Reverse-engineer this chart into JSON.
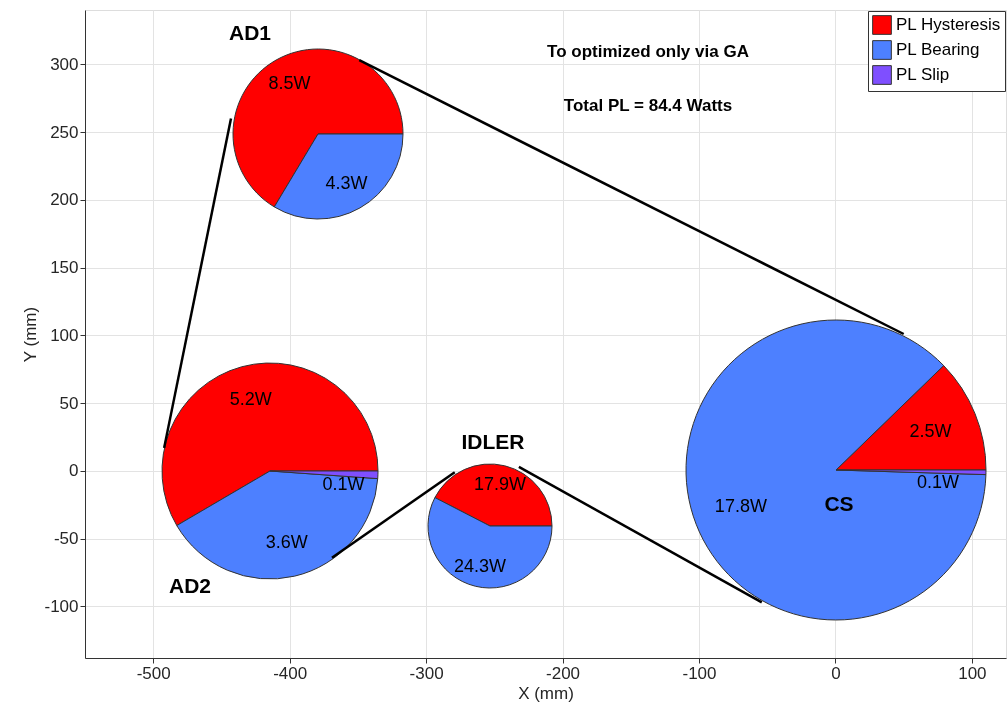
{
  "chart_data": [
    {
      "type": "line",
      "xlabel": "X (mm)",
      "ylabel": "Y (mm)",
      "xlim": [
        -550,
        125
      ],
      "ylim": [
        -138,
        340
      ],
      "xticks": [
        -500,
        -400,
        -300,
        -200,
        -100,
        0,
        100
      ],
      "yticks": [
        -100,
        -50,
        0,
        50,
        100,
        150,
        200,
        250,
        300
      ],
      "grid": true,
      "series": [
        {
          "color": "#000000",
          "x": [
            -492,
            -443,
            null,
            -349,
            50,
            null,
            -54,
            -232,
            null,
            -279,
            -369
          ],
          "values": [
            17,
            260,
            null,
            303,
            101,
            null,
            -97,
            3,
            null,
            -1,
            -64
          ]
        }
      ],
      "annotations": [
        "To optimized only via GA",
        "Total PL = 84.4 Watts"
      ]
    },
    {
      "type": "pie",
      "title": "AD1",
      "legend": "top right",
      "categories": [
        "PL Hysteresis",
        "PL Bearing",
        "PL Slip"
      ],
      "colors": [
        "#ff0000",
        "#4d80ff",
        "#7f4fff"
      ],
      "values": [
        8.5,
        4.3,
        null
      ],
      "value_labels": [
        "8.5W",
        "4.3W",
        null
      ]
    },
    {
      "type": "pie",
      "title": "AD2",
      "categories": [
        null,
        null,
        null
      ],
      "colors": [
        "#ff0000",
        "#4d80ff",
        "#7f4fff"
      ],
      "values": [
        5.2,
        3.6,
        0.1
      ],
      "value_labels": [
        "5.2W",
        "3.6W",
        "0.1W"
      ]
    },
    {
      "type": "pie",
      "title": "IDLER",
      "categories": [
        null,
        null,
        null
      ],
      "colors": [
        "#ff0000",
        "#4d80ff",
        "#7f4fff"
      ],
      "values": [
        17.9,
        24.3,
        null
      ],
      "value_labels": [
        "17.9W",
        "24.3W",
        null
      ]
    },
    {
      "type": "pie",
      "title": "CS",
      "categories": [
        null,
        null,
        null
      ],
      "colors": [
        "#ff0000",
        "#4d80ff",
        "#7f4fff"
      ],
      "values": [
        2.5,
        17.8,
        0.1
      ],
      "value_labels": [
        "2.5W",
        "17.8W",
        "0.1W"
      ]
    }
  ]
}
